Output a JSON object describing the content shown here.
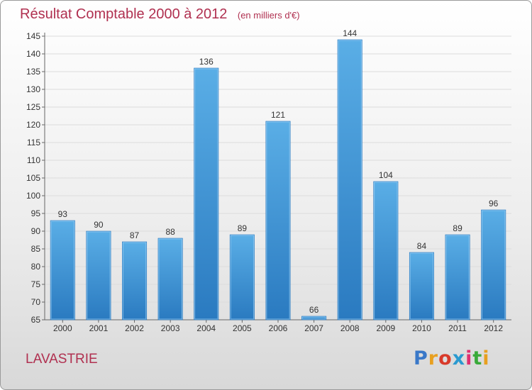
{
  "chart_data": {
    "type": "bar",
    "title": "Résultat Comptable 2000 à 2012",
    "subtitle": "(en milliers d'€)",
    "categories": [
      "2000",
      "2001",
      "2002",
      "2003",
      "2004",
      "2005",
      "2006",
      "2007",
      "2008",
      "2009",
      "2010",
      "2011",
      "2012"
    ],
    "values": [
      93,
      90,
      87,
      88,
      136,
      89,
      121,
      66,
      144,
      104,
      84,
      89,
      96
    ],
    "ylim": [
      65,
      145
    ],
    "yticks": [
      65,
      70,
      75,
      80,
      85,
      90,
      95,
      100,
      105,
      110,
      115,
      120,
      125,
      130,
      135,
      140,
      145
    ],
    "grid": true,
    "legend": "none",
    "colors": {
      "bar_top": "#5aaee6",
      "bar_bottom": "#2a7ac0",
      "title": "#b03050"
    }
  },
  "footer": {
    "commune": "LAVASTRIE",
    "brand": "Proxiti",
    "brand_colors": [
      "#3a78c8",
      "#e8a020",
      "#d83a2a",
      "#2a9ad0",
      "#e03070",
      "#3aaa3a",
      "#e8a020"
    ]
  }
}
